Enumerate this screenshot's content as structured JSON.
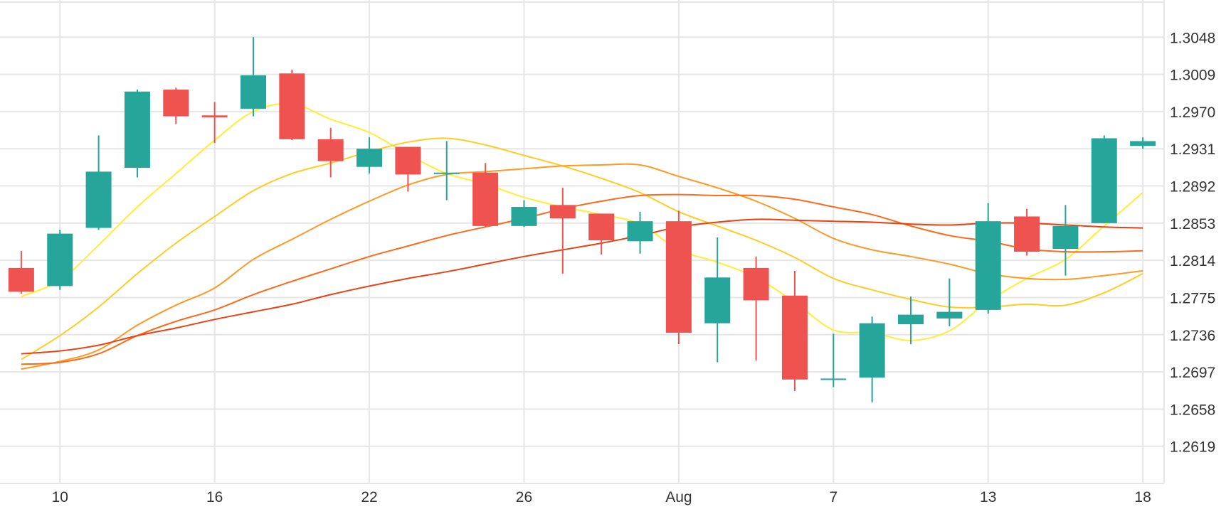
{
  "chart_data": {
    "type": "candlestick",
    "title": "",
    "xlabel": "",
    "ylabel": "",
    "ylim": [
      1.258,
      1.3087
    ],
    "xlim": [
      -0.55,
      29.55
    ],
    "x_ticks": [
      {
        "x": 1,
        "label": "10"
      },
      {
        "x": 5,
        "label": "16"
      },
      {
        "x": 9,
        "label": "22"
      },
      {
        "x": 13,
        "label": "26"
      },
      {
        "x": 17,
        "label": "Aug"
      },
      {
        "x": 21,
        "label": "7"
      },
      {
        "x": 25,
        "label": "13"
      },
      {
        "x": 29,
        "label": "18"
      }
    ],
    "y_ticks": [
      "1.3048",
      "1.3009",
      "1.2970",
      "1.2931",
      "1.2892",
      "1.2853",
      "1.2814",
      "1.2775",
      "1.2736",
      "1.2697",
      "1.2658",
      "1.2619"
    ],
    "grid": true,
    "legend": "none",
    "colors": {
      "up": "#26a69a",
      "down": "#ef5350",
      "grid": "#e6e6e6",
      "ma_lines": [
        "#ffee33",
        "#ffcc22",
        "#ff9922",
        "#ff6a1a",
        "#e84315"
      ]
    },
    "candles": [
      {
        "x": 0,
        "o": 1.2806,
        "h": 1.2824,
        "l": 1.2779,
        "c": 1.2781
      },
      {
        "x": 1,
        "o": 1.2787,
        "h": 1.2846,
        "l": 1.2783,
        "c": 1.2842
      },
      {
        "x": 2,
        "o": 1.2848,
        "h": 1.2945,
        "l": 1.2846,
        "c": 1.2907
      },
      {
        "x": 3,
        "o": 1.2911,
        "h": 1.2993,
        "l": 1.2901,
        "c": 1.2991
      },
      {
        "x": 4,
        "o": 1.2993,
        "h": 1.2995,
        "l": 1.2957,
        "c": 1.2965
      },
      {
        "x": 5,
        "o": 1.2966,
        "h": 1.298,
        "l": 1.2937,
        "c": 1.2964
      },
      {
        "x": 6,
        "o": 1.2973,
        "h": 1.3048,
        "l": 1.2965,
        "c": 1.3008
      },
      {
        "x": 7,
        "o": 1.301,
        "h": 1.3014,
        "l": 1.294,
        "c": 1.2941
      },
      {
        "x": 8,
        "o": 1.2941,
        "h": 1.2953,
        "l": 1.2901,
        "c": 1.2918
      },
      {
        "x": 9,
        "o": 1.2912,
        "h": 1.2943,
        "l": 1.2905,
        "c": 1.2931
      },
      {
        "x": 10,
        "o": 1.2933,
        "h": 1.2933,
        "l": 1.2886,
        "c": 1.2904
      },
      {
        "x": 11,
        "o": 1.2906,
        "h": 1.2939,
        "l": 1.2877,
        "c": 1.2906
      },
      {
        "x": 12,
        "o": 1.2906,
        "h": 1.2916,
        "l": 1.2849,
        "c": 1.285
      },
      {
        "x": 13,
        "o": 1.285,
        "h": 1.2877,
        "l": 1.2849,
        "c": 1.287
      },
      {
        "x": 14,
        "o": 1.2872,
        "h": 1.289,
        "l": 1.28,
        "c": 1.2858
      },
      {
        "x": 15,
        "o": 1.2863,
        "h": 1.2863,
        "l": 1.282,
        "c": 1.2835
      },
      {
        "x": 16,
        "o": 1.2834,
        "h": 1.2865,
        "l": 1.2821,
        "c": 1.2855
      },
      {
        "x": 17,
        "o": 1.2855,
        "h": 1.2866,
        "l": 1.2726,
        "c": 1.2738
      },
      {
        "x": 18,
        "o": 1.2748,
        "h": 1.2838,
        "l": 1.2707,
        "c": 1.2796
      },
      {
        "x": 19,
        "o": 1.2806,
        "h": 1.2818,
        "l": 1.2709,
        "c": 1.2772
      },
      {
        "x": 20,
        "o": 1.2777,
        "h": 1.2803,
        "l": 1.2677,
        "c": 1.2689
      },
      {
        "x": 21,
        "o": 1.269,
        "h": 1.2737,
        "l": 1.2681,
        "c": 1.269
      },
      {
        "x": 22,
        "o": 1.2691,
        "h": 1.2755,
        "l": 1.2665,
        "c": 1.2748
      },
      {
        "x": 23,
        "o": 1.2747,
        "h": 1.2776,
        "l": 1.2726,
        "c": 1.2757
      },
      {
        "x": 24,
        "o": 1.2753,
        "h": 1.2795,
        "l": 1.2745,
        "c": 1.276
      },
      {
        "x": 25,
        "o": 1.2762,
        "h": 1.2874,
        "l": 1.2758,
        "c": 1.2855
      },
      {
        "x": 26,
        "o": 1.286,
        "h": 1.2868,
        "l": 1.2819,
        "c": 1.2823
      },
      {
        "x": 27,
        "o": 1.2826,
        "h": 1.2872,
        "l": 1.2798,
        "c": 1.285
      },
      {
        "x": 28,
        "o": 1.2853,
        "h": 1.2945,
        "l": 1.2853,
        "c": 1.2942
      },
      {
        "x": 29,
        "o": 1.2934,
        "h": 1.2943,
        "l": 1.2931,
        "c": 1.2939
      }
    ],
    "series": [
      {
        "color": "#ffee33",
        "points": [
          [
            0,
            1.2776
          ],
          [
            1,
            1.2793
          ],
          [
            2,
            1.283
          ],
          [
            3,
            1.287
          ],
          [
            4,
            1.2905
          ],
          [
            5,
            1.294
          ],
          [
            6,
            1.297
          ],
          [
            7,
            1.2978
          ],
          [
            8,
            1.2962
          ],
          [
            9,
            1.2948
          ],
          [
            10,
            1.2925
          ],
          [
            11,
            1.2905
          ],
          [
            12,
            1.2894
          ],
          [
            13,
            1.288
          ],
          [
            14,
            1.287
          ],
          [
            15,
            1.2862
          ],
          [
            16,
            1.2852
          ],
          [
            17,
            1.2825
          ],
          [
            18,
            1.2812
          ],
          [
            19,
            1.2796
          ],
          [
            20,
            1.277
          ],
          [
            21,
            1.2741
          ],
          [
            22,
            1.2738
          ],
          [
            23,
            1.273
          ],
          [
            24,
            1.274
          ],
          [
            25,
            1.2771
          ],
          [
            26,
            1.2795
          ],
          [
            27,
            1.2815
          ],
          [
            28,
            1.285
          ],
          [
            29,
            1.2885
          ]
        ]
      },
      {
        "color": "#ffcc22",
        "points": [
          [
            0,
            1.271
          ],
          [
            1,
            1.2735
          ],
          [
            2,
            1.2765
          ],
          [
            3,
            1.28
          ],
          [
            4,
            1.2832
          ],
          [
            5,
            1.286
          ],
          [
            6,
            1.2887
          ],
          [
            7,
            1.2905
          ],
          [
            8,
            1.2916
          ],
          [
            9,
            1.2928
          ],
          [
            10,
            1.2938
          ],
          [
            11,
            1.2942
          ],
          [
            12,
            1.2935
          ],
          [
            13,
            1.2924
          ],
          [
            14,
            1.2913
          ],
          [
            15,
            1.29
          ],
          [
            16,
            1.2885
          ],
          [
            17,
            1.2865
          ],
          [
            18,
            1.285
          ],
          [
            19,
            1.2835
          ],
          [
            20,
            1.2817
          ],
          [
            21,
            1.2795
          ],
          [
            22,
            1.2783
          ],
          [
            23,
            1.2773
          ],
          [
            24,
            1.2765
          ],
          [
            25,
            1.2765
          ],
          [
            26,
            1.2768
          ],
          [
            27,
            1.2767
          ],
          [
            28,
            1.278
          ],
          [
            29,
            1.28
          ]
        ]
      },
      {
        "color": "#ff9922",
        "points": [
          [
            0,
            1.27
          ],
          [
            1,
            1.2708
          ],
          [
            2,
            1.272
          ],
          [
            3,
            1.2746
          ],
          [
            4,
            1.2767
          ],
          [
            5,
            1.2785
          ],
          [
            6,
            1.2815
          ],
          [
            7,
            1.2836
          ],
          [
            8,
            1.2857
          ],
          [
            9,
            1.2876
          ],
          [
            10,
            1.2893
          ],
          [
            11,
            1.2904
          ],
          [
            12,
            1.2907
          ],
          [
            13,
            1.291
          ],
          [
            14,
            1.2913
          ],
          [
            15,
            1.2914
          ],
          [
            16,
            1.2914
          ],
          [
            17,
            1.2902
          ],
          [
            18,
            1.289
          ],
          [
            19,
            1.2876
          ],
          [
            20,
            1.2858
          ],
          [
            21,
            1.2837
          ],
          [
            22,
            1.2825
          ],
          [
            23,
            1.2818
          ],
          [
            24,
            1.281
          ],
          [
            25,
            1.28
          ],
          [
            26,
            1.2795
          ],
          [
            27,
            1.2794
          ],
          [
            28,
            1.2798
          ],
          [
            29,
            1.2803
          ]
        ]
      },
      {
        "color": "#ff6a1a",
        "points": [
          [
            0,
            1.2705
          ],
          [
            1,
            1.2707
          ],
          [
            2,
            1.2716
          ],
          [
            3,
            1.2735
          ],
          [
            4,
            1.275
          ],
          [
            5,
            1.2762
          ],
          [
            6,
            1.2778
          ],
          [
            7,
            1.2792
          ],
          [
            8,
            1.2805
          ],
          [
            9,
            1.2818
          ],
          [
            10,
            1.2829
          ],
          [
            11,
            1.284
          ],
          [
            12,
            1.2849
          ],
          [
            13,
            1.2858
          ],
          [
            14,
            1.2868
          ],
          [
            15,
            1.2876
          ],
          [
            16,
            1.2882
          ],
          [
            17,
            1.2883
          ],
          [
            18,
            1.2882
          ],
          [
            19,
            1.2882
          ],
          [
            20,
            1.2878
          ],
          [
            21,
            1.287
          ],
          [
            22,
            1.2862
          ],
          [
            23,
            1.285
          ],
          [
            24,
            1.284
          ],
          [
            25,
            1.2834
          ],
          [
            26,
            1.2826
          ],
          [
            27,
            1.2823
          ],
          [
            28,
            1.2823
          ],
          [
            29,
            1.2824
          ]
        ]
      },
      {
        "color": "#e84315",
        "points": [
          [
            0,
            1.2716
          ],
          [
            1,
            1.2719
          ],
          [
            2,
            1.2725
          ],
          [
            3,
            1.2735
          ],
          [
            4,
            1.2743
          ],
          [
            5,
            1.2752
          ],
          [
            6,
            1.276
          ],
          [
            7,
            1.2768
          ],
          [
            8,
            1.2778
          ],
          [
            9,
            1.2787
          ],
          [
            10,
            1.2795
          ],
          [
            11,
            1.2802
          ],
          [
            12,
            1.281
          ],
          [
            13,
            1.2818
          ],
          [
            14,
            1.2825
          ],
          [
            15,
            1.2832
          ],
          [
            16,
            1.284
          ],
          [
            17,
            1.2849
          ],
          [
            18,
            1.2854
          ],
          [
            19,
            1.2857
          ],
          [
            20,
            1.2856
          ],
          [
            21,
            1.2855
          ],
          [
            22,
            1.2854
          ],
          [
            23,
            1.2852
          ],
          [
            24,
            1.2851
          ],
          [
            25,
            1.2853
          ],
          [
            26,
            1.2853
          ],
          [
            27,
            1.2851
          ],
          [
            28,
            1.2849
          ],
          [
            29,
            1.2848
          ]
        ]
      }
    ]
  }
}
